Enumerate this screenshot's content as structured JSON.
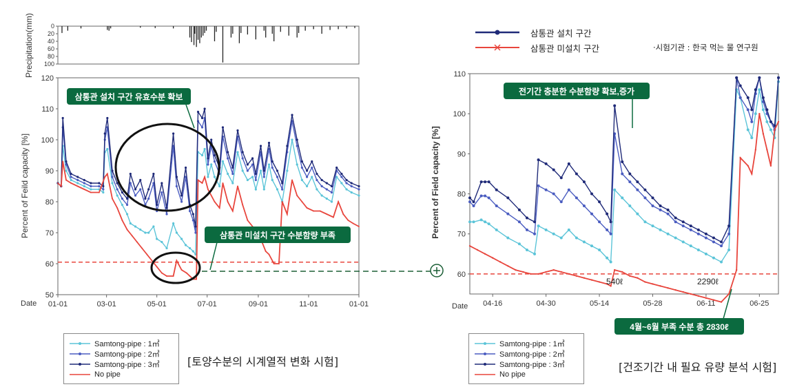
{
  "colors": {
    "s1": "#5bc4d8",
    "s2": "#4a5cc0",
    "s3": "#1f2a78",
    "nopipe": "#e8453c",
    "callout": "#0b6a3f",
    "threshold": "#e8453c",
    "connector": "#1b5e35"
  },
  "top_legend": {
    "installed": "삼통관 설치 구간",
    "not_installed": "삼통관 미설치 구간",
    "tester": "·시험기관 : 한국 먹는 물 연구원"
  },
  "captions": {
    "left": "[토양수분의 시계열적 변화 시험]",
    "right": "[건조기간 내 필요 유량 분석 시험]"
  },
  "callouts": {
    "left_top": "삼통관 설치 구간 유효수분 확보",
    "left_bottom": "삼통관 미설치 구간 수분함량 부족",
    "right_top": "전기간 충분한 수분함량 확보,증가",
    "right_bottom": "4월~6월 부족 수분 총 2830ℓ"
  },
  "annotations": {
    "a540": "540ℓ",
    "a2290": "2290ℓ"
  },
  "legend_items": [
    "Samtong-pipe : 1㎥",
    "Samtong-pipe : 2㎥",
    "Samtong-pipe : 3㎥",
    "No pipe"
  ],
  "chart_data": [
    {
      "type": "bar",
      "ylabel": "Precipitation(mm)",
      "yticks": [
        0,
        20,
        40,
        60,
        80,
        100
      ],
      "ylim": [
        0,
        100
      ],
      "inverted": true,
      "xlim": [
        0,
        365
      ],
      "x": [
        5,
        12,
        28,
        60,
        62,
        64,
        100,
        118,
        140,
        160,
        162,
        165,
        166,
        168,
        170,
        172,
        174,
        176,
        178,
        180,
        190,
        192,
        200,
        210,
        212,
        220,
        222,
        230,
        240,
        250,
        252,
        260,
        262,
        270,
        280,
        290,
        292,
        300,
        310,
        320,
        330,
        340,
        350,
        360
      ],
      "values": [
        18,
        12,
        6,
        10,
        12,
        6,
        4,
        5,
        6,
        30,
        42,
        50,
        20,
        55,
        36,
        45,
        30,
        25,
        18,
        12,
        40,
        15,
        96,
        30,
        20,
        45,
        18,
        22,
        35,
        12,
        30,
        20,
        40,
        15,
        25,
        30,
        18,
        12,
        8,
        20,
        10,
        8,
        6,
        5
      ]
    },
    {
      "type": "line",
      "xlabel": "Date",
      "ylabel": "Percent of Feild capacity [%]",
      "xlim": [
        0,
        365
      ],
      "ylim": [
        50,
        120
      ],
      "yticks": [
        50,
        60,
        70,
        80,
        90,
        100,
        110,
        120
      ],
      "xticks": [
        {
          "x": 0,
          "label": "01-01"
        },
        {
          "x": 59,
          "label": "03-01"
        },
        {
          "x": 120,
          "label": "05-01"
        },
        {
          "x": 181,
          "label": "07-01"
        },
        {
          "x": 243,
          "label": "09-01"
        },
        {
          "x": 304,
          "label": "11-01"
        },
        {
          "x": 365,
          "label": "01-01"
        }
      ],
      "threshold": 60.5,
      "series": [
        {
          "name": "Samtong-pipe : 1㎥",
          "color_key": "s1",
          "x": [
            0,
            4,
            6,
            10,
            16,
            24,
            32,
            40,
            50,
            55,
            57,
            60,
            66,
            72,
            78,
            84,
            88,
            94,
            100,
            106,
            110,
            116,
            120,
            126,
            132,
            140,
            144,
            150,
            155,
            160,
            164,
            167,
            170,
            175,
            178,
            182,
            186,
            190,
            196,
            200,
            206,
            212,
            218,
            224,
            230,
            236,
            240,
            246,
            250,
            256,
            260,
            266,
            272,
            278,
            284,
            290,
            296,
            302,
            308,
            314,
            320,
            326,
            332,
            338,
            344,
            350,
            356,
            365
          ],
          "y": [
            86,
            85,
            98,
            90,
            87,
            86,
            85,
            84,
            84,
            83,
            96,
            97,
            86,
            82,
            79,
            76,
            73,
            72,
            71,
            70,
            70,
            72,
            68,
            67,
            65,
            73,
            70,
            68,
            66,
            65,
            64,
            63,
            96,
            95,
            97,
            88,
            92,
            88,
            85,
            93,
            89,
            86,
            96,
            90,
            87,
            88,
            84,
            90,
            84,
            92,
            87,
            84,
            80,
            90,
            100,
            92,
            87,
            85,
            88,
            84,
            82,
            81,
            80,
            88,
            86,
            84,
            83,
            82
          ]
        },
        {
          "name": "Samtong-pipe : 2㎥",
          "color_key": "s2",
          "x": [
            0,
            4,
            6,
            10,
            16,
            24,
            32,
            40,
            50,
            55,
            57,
            60,
            66,
            72,
            78,
            84,
            88,
            94,
            100,
            106,
            110,
            116,
            120,
            126,
            132,
            140,
            144,
            150,
            155,
            160,
            164,
            167,
            170,
            175,
            178,
            182,
            186,
            190,
            196,
            200,
            206,
            212,
            218,
            224,
            230,
            236,
            240,
            246,
            250,
            256,
            260,
            266,
            272,
            278,
            284,
            290,
            296,
            302,
            308,
            314,
            320,
            326,
            332,
            338,
            344,
            350,
            356,
            365
          ],
          "y": [
            86,
            85,
            104,
            92,
            88,
            87,
            86,
            85,
            85,
            84,
            100,
            104,
            88,
            84,
            81,
            79,
            86,
            82,
            84,
            79,
            81,
            86,
            77,
            83,
            76,
            98,
            85,
            80,
            88,
            77,
            74,
            70,
            106,
            104,
            107,
            92,
            98,
            93,
            89,
            101,
            94,
            89,
            101,
            94,
            90,
            92,
            87,
            96,
            88,
            97,
            91,
            88,
            84,
            96,
            106,
            98,
            91,
            88,
            91,
            87,
            85,
            84,
            83,
            90,
            88,
            86,
            85,
            84
          ]
        },
        {
          "name": "Samtong-pipe : 3㎥",
          "color_key": "s3",
          "x": [
            0,
            4,
            6,
            10,
            16,
            24,
            32,
            40,
            50,
            55,
            57,
            60,
            66,
            72,
            78,
            84,
            88,
            94,
            100,
            106,
            110,
            116,
            120,
            126,
            132,
            140,
            144,
            150,
            155,
            160,
            164,
            167,
            170,
            175,
            178,
            182,
            186,
            190,
            196,
            200,
            206,
            212,
            218,
            224,
            230,
            236,
            240,
            246,
            250,
            256,
            260,
            266,
            272,
            278,
            284,
            290,
            296,
            302,
            308,
            314,
            320,
            326,
            332,
            338,
            344,
            350,
            356,
            365
          ],
          "y": [
            86,
            85,
            107,
            93,
            89,
            88,
            87,
            86,
            86,
            85,
            102,
            107,
            90,
            86,
            83,
            81,
            89,
            84,
            87,
            81,
            84,
            89,
            79,
            86,
            78,
            102,
            88,
            82,
            91,
            79,
            76,
            72,
            109,
            107,
            110,
            94,
            100,
            95,
            91,
            104,
            96,
            91,
            103,
            96,
            92,
            94,
            89,
            98,
            90,
            99,
            93,
            90,
            86,
            98,
            108,
            100,
            93,
            90,
            93,
            89,
            87,
            86,
            85,
            91,
            89,
            87,
            86,
            85
          ]
        },
        {
          "name": "No pipe",
          "color_key": "nopipe",
          "x": [
            0,
            4,
            6,
            10,
            16,
            24,
            32,
            40,
            50,
            57,
            60,
            66,
            72,
            78,
            84,
            90,
            96,
            102,
            108,
            114,
            120,
            126,
            132,
            140,
            144,
            150,
            156,
            160,
            164,
            168,
            170,
            175,
            178,
            182,
            190,
            196,
            200,
            206,
            212,
            218,
            224,
            230,
            236,
            240,
            246,
            252,
            256,
            262,
            268,
            272,
            278,
            284,
            290,
            296,
            302,
            310,
            318,
            326,
            334,
            340,
            346,
            352,
            358,
            365
          ],
          "y": [
            86,
            85,
            93,
            87,
            86,
            85,
            84,
            83,
            83,
            88,
            89,
            81,
            78,
            74,
            71,
            69,
            67,
            65,
            63,
            61,
            59,
            57,
            56,
            56,
            61,
            58,
            57,
            56,
            55,
            55,
            87,
            86,
            88,
            84,
            80,
            78,
            86,
            80,
            77,
            85,
            79,
            74,
            72,
            70,
            68,
            64,
            63,
            60,
            60,
            80,
            76,
            87,
            82,
            80,
            78,
            77,
            77,
            76,
            75,
            80,
            76,
            74,
            73,
            72
          ]
        }
      ]
    },
    {
      "type": "line",
      "xlabel": "Date",
      "ylabel": "Percent of Field capacity [%]",
      "xlim": [
        0,
        81
      ],
      "ylim": [
        55,
        110
      ],
      "yticks": [
        60,
        70,
        80,
        90,
        100,
        110
      ],
      "xticks": [
        {
          "x": 6,
          "label": "04-16"
        },
        {
          "x": 20,
          "label": "04-30"
        },
        {
          "x": 34,
          "label": "05-14"
        },
        {
          "x": 48,
          "label": "05-28"
        },
        {
          "x": 62,
          "label": "06-11"
        },
        {
          "x": 76,
          "label": "06-25"
        }
      ],
      "threshold": 60,
      "series": [
        {
          "name": "Samtong-pipe : 1㎥",
          "color_key": "s1",
          "x": [
            0,
            1,
            3,
            4,
            5,
            7,
            10,
            13,
            15,
            17,
            18,
            20,
            22,
            24,
            26,
            28,
            30,
            32,
            34,
            36,
            37,
            38,
            40,
            42,
            44,
            46,
            48,
            50,
            52,
            54,
            56,
            58,
            60,
            62,
            64,
            66,
            68,
            70,
            71,
            73,
            74,
            75,
            76,
            77,
            78,
            79,
            80,
            81
          ],
          "y": [
            73,
            73,
            73.5,
            73,
            72.5,
            71,
            69,
            67.5,
            66,
            65,
            72,
            71,
            70,
            69,
            71,
            69,
            68,
            67,
            66,
            64,
            63,
            81,
            79,
            77,
            75,
            73,
            72,
            71,
            70,
            69,
            68,
            67,
            66,
            65,
            64,
            63,
            66,
            106,
            104,
            96,
            94,
            100,
            106,
            101,
            98,
            96,
            94,
            108
          ]
        },
        {
          "name": "Samtong-pipe : 2㎥",
          "color_key": "s2",
          "x": [
            0,
            1,
            3,
            4,
            5,
            7,
            10,
            13,
            15,
            17,
            18,
            20,
            22,
            24,
            26,
            28,
            30,
            32,
            34,
            36,
            37,
            38,
            40,
            42,
            44,
            46,
            48,
            50,
            52,
            54,
            56,
            58,
            60,
            62,
            64,
            66,
            68,
            70,
            71,
            73,
            74,
            75,
            76,
            77,
            78,
            79,
            80,
            81
          ],
          "y": [
            78,
            77,
            79.5,
            79.5,
            79,
            77,
            75,
            73,
            71,
            70,
            82,
            81,
            80,
            78,
            81,
            79,
            77,
            75,
            73,
            71,
            70,
            95,
            85,
            83,
            81,
            79,
            77,
            76,
            75,
            73,
            72,
            71,
            70,
            69,
            68,
            67,
            70,
            109,
            104,
            101,
            98,
            105,
            109,
            103,
            100,
            98,
            96,
            109
          ]
        },
        {
          "name": "Samtong-pipe : 3㎥",
          "color_key": "s3",
          "x": [
            0,
            1,
            3,
            4,
            5,
            7,
            10,
            13,
            15,
            17,
            18,
            20,
            22,
            24,
            26,
            28,
            30,
            32,
            34,
            36,
            37,
            38,
            40,
            42,
            44,
            46,
            48,
            50,
            52,
            54,
            56,
            58,
            60,
            62,
            64,
            66,
            68,
            70,
            71,
            73,
            74,
            75,
            76,
            77,
            78,
            79,
            80,
            81
          ],
          "y": [
            79,
            78,
            83,
            83,
            83,
            81,
            79,
            76,
            74,
            73,
            88.5,
            87.5,
            86,
            84,
            87.5,
            85,
            83,
            80,
            78,
            75,
            73,
            102,
            88,
            85,
            83,
            81,
            79,
            77,
            76,
            74,
            73,
            72,
            71,
            70,
            69,
            68,
            72,
            109,
            107,
            104,
            101,
            106,
            109,
            104,
            101,
            98,
            97,
            109
          ]
        },
        {
          "name": "No pipe",
          "color_key": "nopipe",
          "x": [
            0,
            2,
            4,
            6,
            8,
            10,
            12,
            14,
            16,
            18,
            20,
            22,
            24,
            26,
            28,
            30,
            32,
            34,
            36,
            37,
            38,
            40,
            42,
            44,
            46,
            48,
            50,
            52,
            54,
            56,
            58,
            60,
            62,
            64,
            66,
            68,
            70,
            71,
            73,
            74,
            75,
            76,
            77,
            78,
            79,
            80,
            81
          ],
          "y": [
            67,
            66,
            65,
            64,
            63,
            62,
            61,
            60.5,
            60,
            60,
            60.5,
            61,
            60.5,
            60,
            59.5,
            59,
            58.5,
            58,
            57.5,
            57,
            61,
            60.5,
            59.5,
            59,
            58,
            57.5,
            57,
            56.5,
            56,
            55.5,
            55,
            54.5,
            54,
            53.5,
            53,
            55,
            61,
            89,
            87,
            85,
            91,
            100,
            95,
            91,
            87,
            96,
            98
          ]
        }
      ]
    }
  ]
}
